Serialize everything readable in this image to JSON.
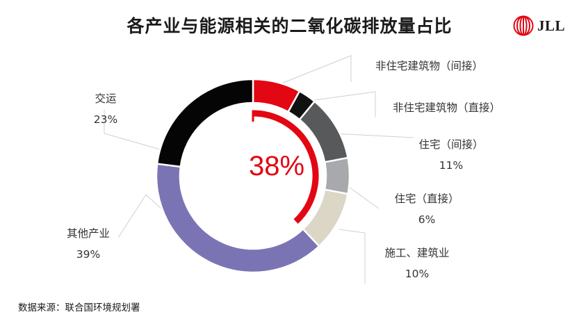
{
  "chart_data": {
    "type": "donut",
    "title": "各产业与能源相关的二氧化碳排放量占比",
    "categories": [
      "非住宅建筑物（间接）",
      "非住宅建筑物（直接）",
      "住宅（间接）",
      "住宅（直接）",
      "施工、建筑业",
      "其他产业",
      "交运"
    ],
    "values": [
      8,
      3,
      11,
      6,
      10,
      39,
      23
    ],
    "value_labels": [
      "",
      "",
      "11%",
      "6%",
      "10%",
      "39%",
      "23%"
    ],
    "colors": [
      "#e30613",
      "#111111",
      "#58595b",
      "#a7a9ac",
      "#dbd6c6",
      "#7b74b4",
      "#050505"
    ],
    "highlight": {
      "value": 38,
      "label": "38%",
      "color": "#e30613"
    }
  },
  "logo": {
    "text": "JLL",
    "color": "#e30613"
  },
  "source": "数据来源：联合国环境规划署"
}
